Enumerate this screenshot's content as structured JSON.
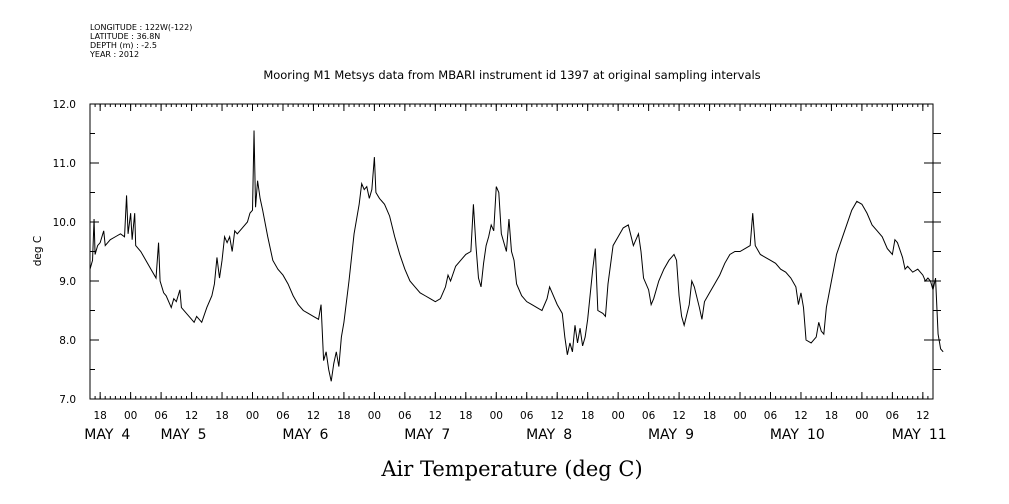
{
  "header": {
    "lines": [
      "LONGITUDE : 122W(-122)",
      "LATITUDE : 36.8N",
      "DEPTH (m) : -2.5",
      "YEAR : 2012"
    ]
  },
  "chart_data": {
    "type": "line",
    "title": "Mooring M1 Metsys data from MBARI instrument id 1397 at original sampling intervals",
    "xlabel": "Air Temperature (deg C)",
    "ylabel": "deg C",
    "ylim": [
      7.0,
      12.0
    ],
    "y_ticks": [
      "7.0",
      "8.0",
      "9.0",
      "10.0",
      "11.0",
      "12.0"
    ],
    "x_unit": "hours since May 4 00:00, 2012",
    "xlim": [
      -8,
      158
    ],
    "hour_ticks": [
      {
        "h": -6,
        "label": "18"
      },
      {
        "h": 0,
        "label": "00"
      },
      {
        "h": 6,
        "label": "06"
      },
      {
        "h": 12,
        "label": "12"
      },
      {
        "h": 18,
        "label": "18"
      },
      {
        "h": 24,
        "label": "00"
      },
      {
        "h": 30,
        "label": "06"
      },
      {
        "h": 36,
        "label": "12"
      },
      {
        "h": 42,
        "label": "18"
      },
      {
        "h": 48,
        "label": "00"
      },
      {
        "h": 54,
        "label": "06"
      },
      {
        "h": 60,
        "label": "12"
      },
      {
        "h": 66,
        "label": "18"
      },
      {
        "h": 72,
        "label": "00"
      },
      {
        "h": 78,
        "label": "06"
      },
      {
        "h": 84,
        "label": "12"
      },
      {
        "h": 90,
        "label": "18"
      },
      {
        "h": 96,
        "label": "00"
      },
      {
        "h": 102,
        "label": "06"
      },
      {
        "h": 108,
        "label": "12"
      },
      {
        "h": 114,
        "label": "18"
      },
      {
        "h": 120,
        "label": "00"
      },
      {
        "h": 126,
        "label": "06"
      },
      {
        "h": 132,
        "label": "12"
      },
      {
        "h": 138,
        "label": "18"
      },
      {
        "h": 144,
        "label": "00"
      },
      {
        "h": 150,
        "label": "06"
      },
      {
        "h": 156,
        "label": "12"
      }
    ],
    "day_labels": [
      {
        "h": -3,
        "month": "MAY",
        "day": "4"
      },
      {
        "h": 12,
        "month": "MAY",
        "day": "5"
      },
      {
        "h": 36,
        "month": "MAY",
        "day": "6"
      },
      {
        "h": 60,
        "month": "MAY",
        "day": "7"
      },
      {
        "h": 84,
        "month": "MAY",
        "day": "8"
      },
      {
        "h": 108,
        "month": "MAY",
        "day": "9"
      },
      {
        "h": 132,
        "month": "MAY",
        "day": "10"
      },
      {
        "h": 156,
        "month": "MAY",
        "day": "11"
      }
    ],
    "series": [
      {
        "points": [
          [
            -8,
            9.2
          ],
          [
            -7.5,
            9.35
          ],
          [
            -7.2,
            10.05
          ],
          [
            -7,
            9.45
          ],
          [
            -6.5,
            9.6
          ],
          [
            -6,
            9.65
          ],
          [
            -5.3,
            9.85
          ],
          [
            -5,
            9.6
          ],
          [
            -4,
            9.7
          ],
          [
            -3,
            9.75
          ],
          [
            -2,
            9.8
          ],
          [
            -1.2,
            9.75
          ],
          [
            -0.8,
            10.45
          ],
          [
            -0.5,
            9.8
          ],
          [
            0,
            10.15
          ],
          [
            0.3,
            9.7
          ],
          [
            0.8,
            10.15
          ],
          [
            1,
            9.6
          ],
          [
            2,
            9.5
          ],
          [
            3,
            9.35
          ],
          [
            4,
            9.2
          ],
          [
            5,
            9.05
          ],
          [
            5.5,
            9.65
          ],
          [
            5.8,
            9.0
          ],
          [
            6.5,
            8.8
          ],
          [
            7,
            8.75
          ],
          [
            8,
            8.55
          ],
          [
            8.5,
            8.7
          ],
          [
            9,
            8.65
          ],
          [
            9.7,
            8.85
          ],
          [
            10,
            8.55
          ],
          [
            11,
            8.45
          ],
          [
            12,
            8.35
          ],
          [
            12.5,
            8.3
          ],
          [
            13,
            8.4
          ],
          [
            14,
            8.3
          ],
          [
            15,
            8.55
          ],
          [
            16,
            8.75
          ],
          [
            16.5,
            8.95
          ],
          [
            17,
            9.4
          ],
          [
            17.5,
            9.05
          ],
          [
            18,
            9.35
          ],
          [
            18.5,
            9.75
          ],
          [
            19,
            9.65
          ],
          [
            19.5,
            9.75
          ],
          [
            20,
            9.5
          ],
          [
            20.5,
            9.85
          ],
          [
            21,
            9.8
          ],
          [
            22,
            9.9
          ],
          [
            23,
            10.0
          ],
          [
            23.5,
            10.15
          ],
          [
            24,
            10.2
          ],
          [
            24.3,
            11.55
          ],
          [
            24.6,
            10.25
          ],
          [
            25,
            10.7
          ],
          [
            25.5,
            10.4
          ],
          [
            26,
            10.2
          ],
          [
            27,
            9.75
          ],
          [
            28,
            9.35
          ],
          [
            29,
            9.2
          ],
          [
            30,
            9.1
          ],
          [
            31,
            8.95
          ],
          [
            32,
            8.75
          ],
          [
            33,
            8.6
          ],
          [
            34,
            8.5
          ],
          [
            35,
            8.45
          ],
          [
            36,
            8.4
          ],
          [
            37,
            8.35
          ],
          [
            37.5,
            8.6
          ],
          [
            38,
            7.65
          ],
          [
            38.5,
            7.8
          ],
          [
            39,
            7.5
          ],
          [
            39.5,
            7.3
          ],
          [
            40,
            7.6
          ],
          [
            40.5,
            7.8
          ],
          [
            41,
            7.55
          ],
          [
            41.5,
            8.05
          ],
          [
            42,
            8.3
          ],
          [
            43,
            9.0
          ],
          [
            44,
            9.8
          ],
          [
            45,
            10.3
          ],
          [
            45.5,
            10.65
          ],
          [
            46,
            10.55
          ],
          [
            46.5,
            10.6
          ],
          [
            47,
            10.4
          ],
          [
            47.5,
            10.55
          ],
          [
            48,
            11.1
          ],
          [
            48.3,
            10.5
          ],
          [
            49,
            10.4
          ],
          [
            50,
            10.3
          ],
          [
            51,
            10.1
          ],
          [
            52,
            9.75
          ],
          [
            53,
            9.45
          ],
          [
            54,
            9.2
          ],
          [
            55,
            9.0
          ],
          [
            56,
            8.9
          ],
          [
            57,
            8.8
          ],
          [
            58,
            8.75
          ],
          [
            59,
            8.7
          ],
          [
            60,
            8.65
          ],
          [
            61,
            8.7
          ],
          [
            62,
            8.9
          ],
          [
            62.5,
            9.1
          ],
          [
            63,
            9.0
          ],
          [
            64,
            9.25
          ],
          [
            65,
            9.35
          ],
          [
            66,
            9.45
          ],
          [
            67,
            9.5
          ],
          [
            67.5,
            10.3
          ],
          [
            68,
            9.6
          ],
          [
            68.5,
            9.05
          ],
          [
            69,
            8.9
          ],
          [
            69.5,
            9.3
          ],
          [
            70,
            9.6
          ],
          [
            70.5,
            9.75
          ],
          [
            71,
            9.95
          ],
          [
            71.5,
            9.85
          ],
          [
            72,
            10.6
          ],
          [
            72.5,
            10.5
          ],
          [
            73,
            9.8
          ],
          [
            73.5,
            9.65
          ],
          [
            74,
            9.5
          ],
          [
            74.5,
            10.05
          ],
          [
            75,
            9.5
          ],
          [
            75.5,
            9.35
          ],
          [
            76,
            8.95
          ],
          [
            77,
            8.75
          ],
          [
            78,
            8.65
          ],
          [
            79,
            8.6
          ],
          [
            80,
            8.55
          ],
          [
            81,
            8.5
          ],
          [
            82,
            8.7
          ],
          [
            82.5,
            8.9
          ],
          [
            83,
            8.8
          ],
          [
            84,
            8.6
          ],
          [
            85,
            8.45
          ],
          [
            85.5,
            8.05
          ],
          [
            86,
            7.75
          ],
          [
            86.5,
            7.95
          ],
          [
            87,
            7.8
          ],
          [
            87.5,
            8.25
          ],
          [
            88,
            7.95
          ],
          [
            88.5,
            8.2
          ],
          [
            89,
            7.9
          ],
          [
            89.5,
            8.05
          ],
          [
            90,
            8.35
          ],
          [
            91,
            9.2
          ],
          [
            91.5,
            9.55
          ],
          [
            92,
            8.5
          ],
          [
            93,
            8.45
          ],
          [
            93.5,
            8.4
          ],
          [
            94,
            8.95
          ],
          [
            95,
            9.6
          ],
          [
            96,
            9.75
          ],
          [
            97,
            9.9
          ],
          [
            98,
            9.95
          ],
          [
            99,
            9.6
          ],
          [
            100,
            9.8
          ],
          [
            100.5,
            9.5
          ],
          [
            101,
            9.05
          ],
          [
            102,
            8.85
          ],
          [
            102.5,
            8.6
          ],
          [
            103,
            8.7
          ],
          [
            104,
            9.0
          ],
          [
            105,
            9.2
          ],
          [
            106,
            9.35
          ],
          [
            107,
            9.45
          ],
          [
            107.5,
            9.35
          ],
          [
            108,
            8.75
          ],
          [
            108.5,
            8.4
          ],
          [
            109,
            8.25
          ],
          [
            110,
            8.6
          ],
          [
            110.5,
            9.0
          ],
          [
            111,
            8.9
          ],
          [
            112,
            8.55
          ],
          [
            112.5,
            8.35
          ],
          [
            113,
            8.65
          ],
          [
            114,
            8.8
          ],
          [
            115,
            8.95
          ],
          [
            116,
            9.1
          ],
          [
            117,
            9.3
          ],
          [
            118,
            9.45
          ],
          [
            119,
            9.5
          ],
          [
            120,
            9.5
          ],
          [
            121,
            9.55
          ],
          [
            122,
            9.6
          ],
          [
            122.5,
            10.15
          ],
          [
            123,
            9.6
          ],
          [
            124,
            9.45
          ],
          [
            125,
            9.4
          ],
          [
            126,
            9.35
          ],
          [
            127,
            9.3
          ],
          [
            128,
            9.2
          ],
          [
            129,
            9.15
          ],
          [
            130,
            9.05
          ],
          [
            131,
            8.9
          ],
          [
            131.5,
            8.6
          ],
          [
            132,
            8.8
          ],
          [
            132.5,
            8.55
          ],
          [
            133,
            8.0
          ],
          [
            134,
            7.95
          ],
          [
            135,
            8.05
          ],
          [
            135.5,
            8.3
          ],
          [
            136,
            8.15
          ],
          [
            136.5,
            8.1
          ],
          [
            137,
            8.55
          ],
          [
            138,
            9.0
          ],
          [
            139,
            9.45
          ],
          [
            140,
            9.7
          ],
          [
            141,
            9.95
          ],
          [
            142,
            10.2
          ],
          [
            143,
            10.35
          ],
          [
            144,
            10.3
          ],
          [
            145,
            10.15
          ],
          [
            146,
            9.95
          ],
          [
            147,
            9.85
          ],
          [
            148,
            9.75
          ],
          [
            149,
            9.55
          ],
          [
            149.5,
            9.5
          ],
          [
            150,
            9.45
          ],
          [
            150.5,
            9.7
          ],
          [
            151,
            9.65
          ],
          [
            152,
            9.4
          ],
          [
            152.5,
            9.2
          ],
          [
            153,
            9.25
          ],
          [
            154,
            9.15
          ],
          [
            155,
            9.2
          ],
          [
            156,
            9.1
          ],
          [
            156.5,
            9.0
          ],
          [
            157,
            9.05
          ],
          [
            157.5,
            9.0
          ],
          [
            158,
            8.85
          ],
          [
            158.5,
            9.05
          ],
          [
            159,
            8.1
          ],
          [
            159.5,
            7.85
          ],
          [
            160,
            7.8
          ]
        ]
      }
    ]
  }
}
